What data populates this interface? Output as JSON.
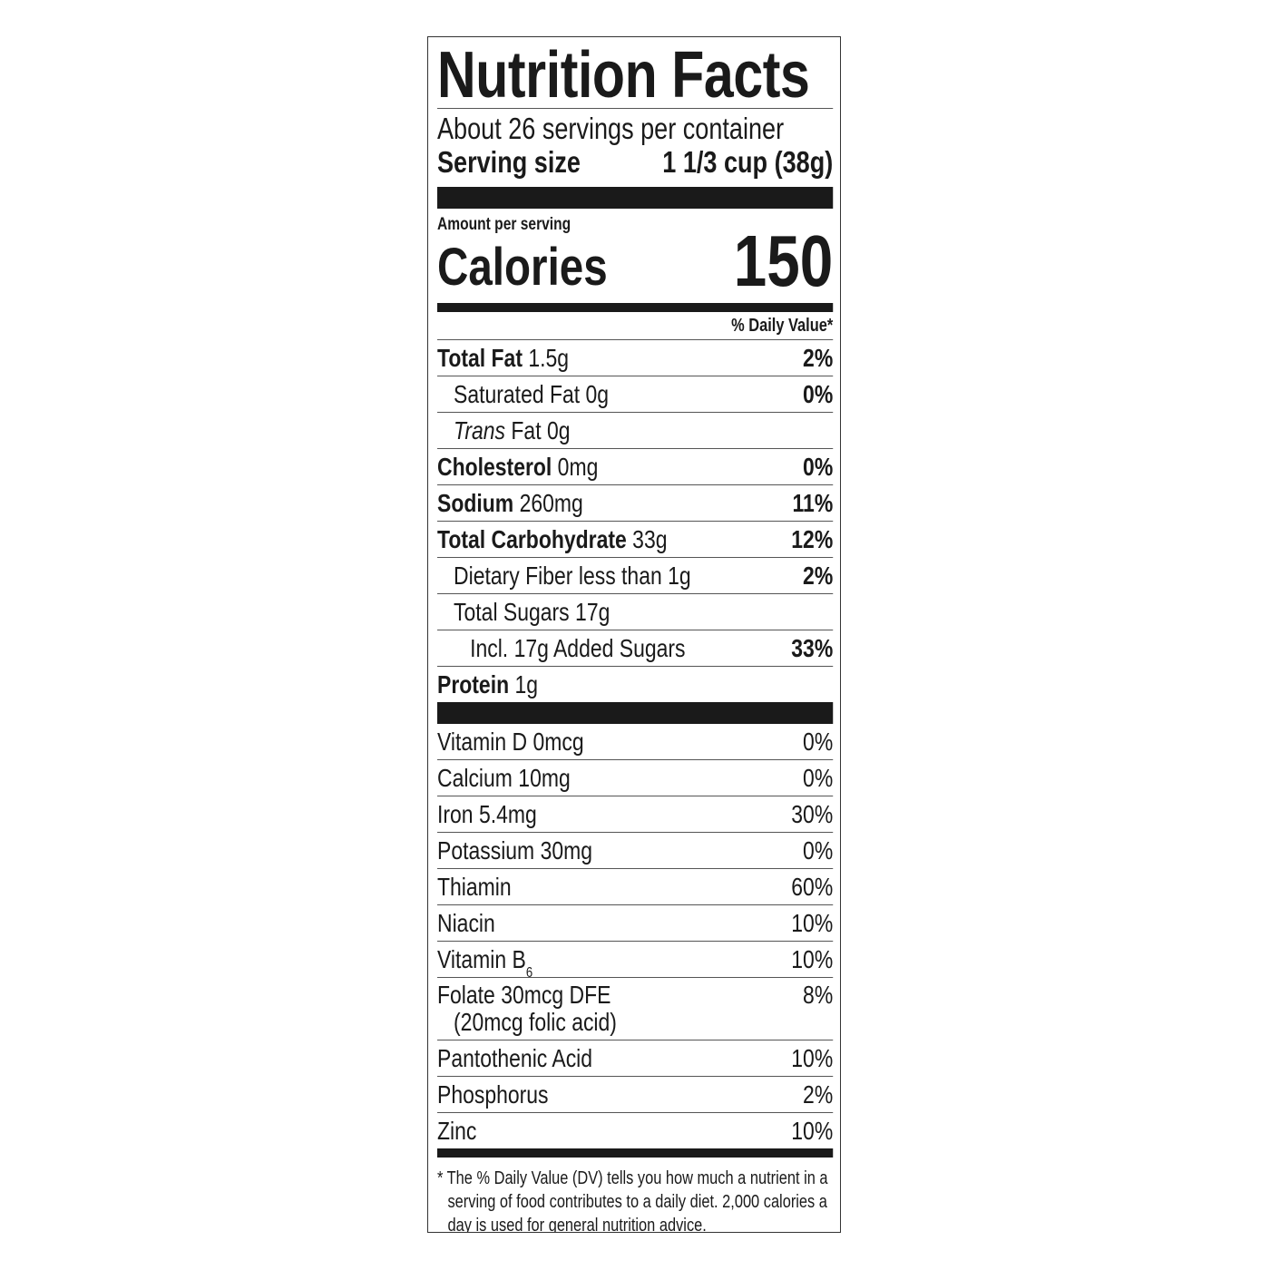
{
  "title": "Nutrition Facts",
  "servings_per_container": "About 26 servings per container",
  "serving_size": {
    "label": "Serving size",
    "value": "1 1/3 cup (38g)"
  },
  "amount_per_serving": "Amount per serving",
  "calories": {
    "label": "Calories",
    "value": "150"
  },
  "daily_value_header": "% Daily Value*",
  "nutrients": [
    {
      "name": "Total Fat",
      "amount": "1.5g",
      "dv": "2%"
    },
    {
      "name": "Saturated Fat",
      "amount": "0g",
      "dv": "0%"
    },
    {
      "name": "Trans",
      "name_rest": "Fat",
      "amount": "0g",
      "dv": ""
    },
    {
      "name": "Cholesterol",
      "amount": "0mg",
      "dv": "0%"
    },
    {
      "name": "Sodium",
      "amount": "260mg",
      "dv": "11%"
    },
    {
      "name": "Total Carbohydrate",
      "amount": "33g",
      "dv": "12%"
    },
    {
      "name": "Dietary Fiber",
      "amount": "less than 1g",
      "dv": "2%"
    },
    {
      "name": "Total Sugars",
      "amount": "17g",
      "dv": ""
    },
    {
      "name": "Incl. 17g Added Sugars",
      "amount": "",
      "dv": "33%"
    },
    {
      "name": "Protein",
      "amount": "1g",
      "dv": ""
    }
  ],
  "vitamins": [
    {
      "name": "Vitamin D 0mcg",
      "dv": "0%"
    },
    {
      "name": "Calcium 10mg",
      "dv": "0%"
    },
    {
      "name": "Iron 5.4mg",
      "dv": "30%"
    },
    {
      "name": "Potassium 30mg",
      "dv": "0%"
    },
    {
      "name": "Thiamin",
      "dv": "60%"
    },
    {
      "name": "Niacin",
      "dv": "10%"
    },
    {
      "name": "Vitamin B",
      "subscript": "6",
      "dv": "10%"
    },
    {
      "name": "Folate 30mcg DFE",
      "note": "(20mcg folic acid)",
      "dv": "8%"
    },
    {
      "name": "Pantothenic Acid",
      "dv": "10%"
    },
    {
      "name": "Phosphorus",
      "dv": "2%"
    },
    {
      "name": "Zinc",
      "dv": "10%"
    }
  ],
  "footnote": "* The % Daily Value (DV) tells you how much a nutrient in a serving of food contributes to a daily diet. 2,000 calories a day is used for general nutrition advice."
}
